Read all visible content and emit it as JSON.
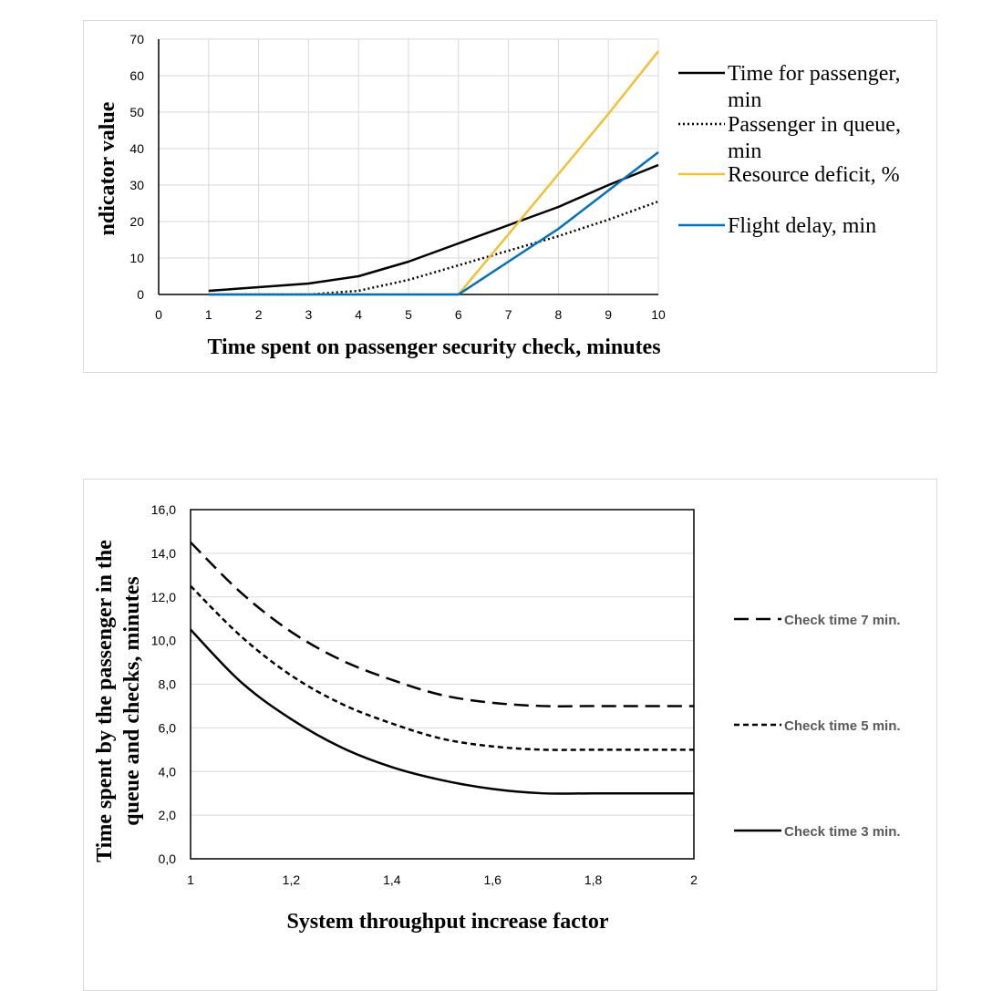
{
  "chart_data": [
    {
      "type": "line",
      "title": "",
      "xlabel": "Time spent on passenger security check, minutes",
      "ylabel": "ndicator value",
      "xlim": [
        0,
        10
      ],
      "ylim": [
        0,
        70
      ],
      "x_ticks": [
        "0",
        "1",
        "2",
        "3",
        "4",
        "5",
        "6",
        "7",
        "8",
        "9",
        "10"
      ],
      "y_ticks": [
        "0",
        "10",
        "20",
        "30",
        "40",
        "50",
        "60",
        "70"
      ],
      "grid": true,
      "legend_position": "right",
      "series": [
        {
          "name": "Time for passenger, min",
          "legend_lines": [
            "Time for passenger,",
            "min"
          ],
          "color": "#000000",
          "style": "solid",
          "x": [
            1,
            2,
            3,
            4,
            5,
            6,
            7,
            8,
            9,
            10
          ],
          "y": [
            1,
            2,
            3,
            5,
            9,
            14,
            19,
            24,
            30,
            35.5
          ]
        },
        {
          "name": "Passenger in queue, min",
          "legend_lines": [
            "Passenger in queue,",
            "min"
          ],
          "color": "#000000",
          "style": "dotted",
          "x": [
            1,
            2,
            3,
            4,
            5,
            6,
            7,
            8,
            9,
            10
          ],
          "y": [
            0,
            0,
            0,
            1,
            4,
            8,
            12,
            16,
            20.5,
            25.5
          ]
        },
        {
          "name": "Resource deficit, %",
          "legend_lines": [
            "Resource deficit, %"
          ],
          "color": "#F2C12E",
          "style": "solid",
          "x": [
            1,
            2,
            3,
            4,
            5,
            6,
            7,
            8,
            9,
            10
          ],
          "y": [
            0,
            0,
            0,
            0,
            0,
            0,
            16.5,
            33,
            49.5,
            66.7
          ]
        },
        {
          "name": "Flight delay, min",
          "legend_lines": [
            "Flight delay, min"
          ],
          "color": "#0070C0",
          "style": "solid",
          "x": [
            1,
            2,
            3,
            4,
            5,
            6,
            7,
            8,
            9,
            10
          ],
          "y": [
            0,
            0,
            0,
            0,
            0,
            0,
            9,
            18,
            28.5,
            39
          ]
        }
      ]
    },
    {
      "type": "line",
      "title": "",
      "xlabel": "System throughput increase factor",
      "ylabel": "Time spent by the passenger in the queue and checks, minutes",
      "ylabel_lines": [
        "Time spent by the passenger in the",
        "queue and checks, minutes"
      ],
      "xlim": [
        1,
        2
      ],
      "ylim": [
        0,
        16
      ],
      "x_ticks": [
        "1",
        "1,2",
        "1,4",
        "1,6",
        "1,8",
        "2"
      ],
      "y_ticks": [
        "0,0",
        "2,0",
        "4,0",
        "6,0",
        "8,0",
        "10,0",
        "12,0",
        "14,0",
        "16,0"
      ],
      "grid": true,
      "legend_position": "right",
      "series": [
        {
          "name": "Check time 7 min.",
          "color": "#000000",
          "style": "dashed",
          "x": [
            1,
            1.1,
            1.2,
            1.3,
            1.4,
            1.5,
            1.6,
            1.7,
            1.8,
            1.9,
            2
          ],
          "y": [
            14.5,
            12.2,
            10.4,
            9.1,
            8.2,
            7.5,
            7.15,
            7.0,
            7.0,
            7.0,
            7.0
          ]
        },
        {
          "name": "Check time 5 min.",
          "color": "#000000",
          "style": "short-dashed",
          "x": [
            1,
            1.1,
            1.2,
            1.3,
            1.4,
            1.5,
            1.6,
            1.7,
            1.8,
            1.9,
            2
          ],
          "y": [
            12.5,
            10.2,
            8.4,
            7.1,
            6.2,
            5.5,
            5.15,
            5.0,
            5.0,
            5.0,
            5.0
          ]
        },
        {
          "name": "Check time 3 min.",
          "color": "#000000",
          "style": "solid",
          "x": [
            1,
            1.1,
            1.2,
            1.3,
            1.4,
            1.5,
            1.6,
            1.7,
            1.8,
            1.9,
            2
          ],
          "y": [
            10.5,
            8.1,
            6.4,
            5.1,
            4.2,
            3.6,
            3.2,
            3.0,
            3.0,
            3.0,
            3.0
          ]
        }
      ]
    }
  ]
}
